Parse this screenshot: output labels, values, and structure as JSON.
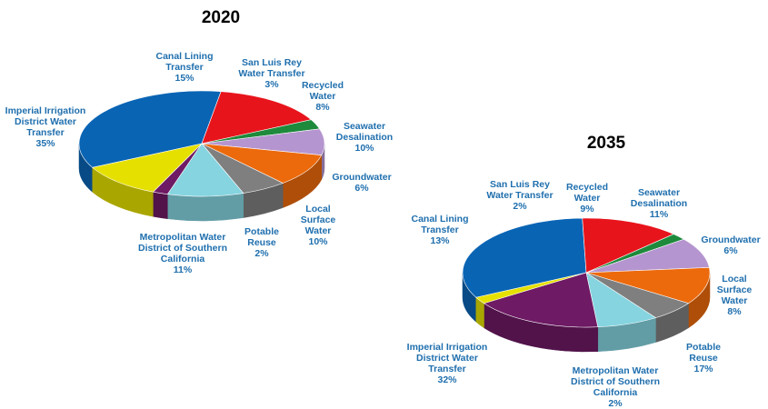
{
  "chart_data": [
    {
      "type": "pie",
      "title": "2020",
      "unit": "%",
      "slices": [
        {
          "label": "Imperial Irrigation District Water Transfer",
          "lines": [
            "Imperial Irrigation",
            "District Water",
            "Transfer"
          ],
          "value": 35,
          "value_label": "35%",
          "color": "#0a64b4"
        },
        {
          "label": "Canal Lining Transfer",
          "lines": [
            "Canal Lining",
            "Transfer"
          ],
          "value": 15,
          "value_label": "15%",
          "color": "#e8141c"
        },
        {
          "label": "San Luis Rey Water Transfer",
          "lines": [
            "San Luis Rey",
            "Water Transfer"
          ],
          "value": 3,
          "value_label": "3%",
          "color": "#1e8a3c"
        },
        {
          "label": "Recycled Water",
          "lines": [
            "Recycled",
            "Water"
          ],
          "value": 8,
          "value_label": "8%",
          "color": "#b595cf"
        },
        {
          "label": "Seawater Desalination",
          "lines": [
            "Seawater",
            "Desalination"
          ],
          "value": 10,
          "value_label": "10%",
          "color": "#ec6a0c"
        },
        {
          "label": "Groundwater",
          "lines": [
            "Groundwater"
          ],
          "value": 6,
          "value_label": "6%",
          "color": "#7f7f7f"
        },
        {
          "label": "Local Surface Water",
          "lines": [
            "Local",
            "Surface",
            "Water"
          ],
          "value": 10,
          "value_label": "10%",
          "color": "#85d4e0"
        },
        {
          "label": "Potable Reuse",
          "lines": [
            "Potable",
            "Reuse"
          ],
          "value": 2,
          "value_label": "2%",
          "color": "#6e1a64"
        },
        {
          "label": "Metropolitan Water District of Southern California",
          "lines": [
            "Metropolitan Water",
            "District of Southern",
            "California"
          ],
          "value": 11,
          "value_label": "11%",
          "color": "#e6e000"
        }
      ]
    },
    {
      "type": "pie",
      "title": "2035",
      "unit": "%",
      "slices": [
        {
          "label": "Imperial Irrigation District Water Transfer",
          "lines": [
            "Imperial Irrigation",
            "District Water",
            "Transfer"
          ],
          "value": 32,
          "value_label": "32%",
          "color": "#0a64b4"
        },
        {
          "label": "Canal Lining Transfer",
          "lines": [
            "Canal Lining",
            "Transfer"
          ],
          "value": 13,
          "value_label": "13%",
          "color": "#e8141c"
        },
        {
          "label": "San Luis Rey Water Transfer",
          "lines": [
            "San Luis Rey",
            "Water Transfer"
          ],
          "value": 2,
          "value_label": "2%",
          "color": "#1e8a3c"
        },
        {
          "label": "Recycled Water",
          "lines": [
            "Recycled",
            "Water"
          ],
          "value": 9,
          "value_label": "9%",
          "color": "#b595cf"
        },
        {
          "label": "Seawater Desalination",
          "lines": [
            "Seawater",
            "Desalination"
          ],
          "value": 11,
          "value_label": "11%",
          "color": "#ec6a0c"
        },
        {
          "label": "Groundwater",
          "lines": [
            "Groundwater"
          ],
          "value": 6,
          "value_label": "6%",
          "color": "#7f7f7f"
        },
        {
          "label": "Local Surface Water",
          "lines": [
            "Local",
            "Surface",
            "Water"
          ],
          "value": 8,
          "value_label": "8%",
          "color": "#85d4e0"
        },
        {
          "label": "Potable Reuse",
          "lines": [
            "Potable",
            "Reuse"
          ],
          "value": 17,
          "value_label": "17%",
          "color": "#6e1a64"
        },
        {
          "label": "Metropolitan Water District of Southern California",
          "lines": [
            "Metropolitan Water",
            "District of Southern",
            "California"
          ],
          "value": 2,
          "value_label": "2%",
          "color": "#e6e000"
        }
      ]
    }
  ]
}
